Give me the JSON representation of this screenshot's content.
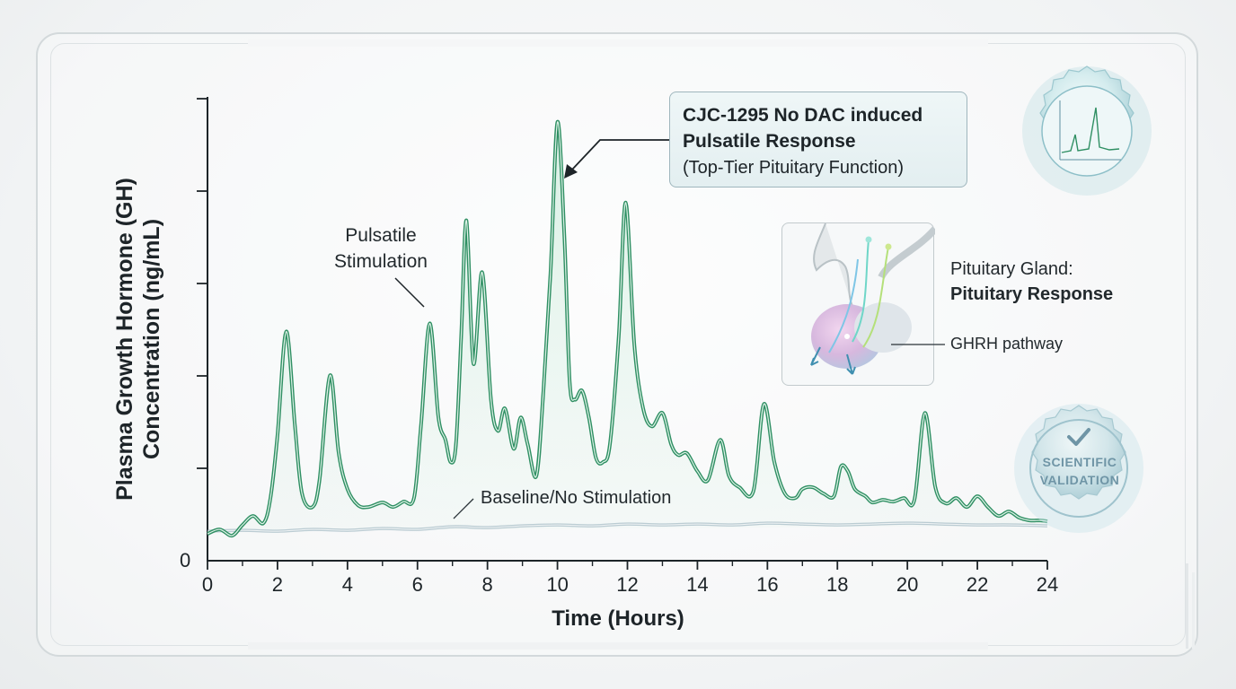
{
  "chart_data": {
    "type": "line",
    "title": "",
    "xlabel": "Time (Hours)",
    "ylabel": [
      "Plasma Growth Hormone (GH)",
      "Concentration (ng/mL)"
    ],
    "xlim": [
      0,
      24
    ],
    "x_ticks": [
      "0",
      "2",
      "4",
      "6",
      "8",
      "10",
      "12",
      "14",
      "16",
      "18",
      "20",
      "22",
      "24"
    ],
    "y_tick_labels": [
      "0"
    ],
    "series": [
      {
        "name": "CJC-1295 No DAC induced Pulsatile Response",
        "color": "#2f8f63",
        "x": [
          0,
          0.35,
          0.7,
          1.0,
          1.3,
          1.6,
          1.8,
          2.0,
          2.25,
          2.5,
          2.7,
          3.0,
          3.2,
          3.5,
          3.75,
          4.0,
          4.3,
          4.6,
          5.0,
          5.3,
          5.6,
          5.9,
          6.1,
          6.35,
          6.6,
          6.8,
          6.95,
          7.1,
          7.25,
          7.4,
          7.6,
          7.85,
          8.1,
          8.3,
          8.5,
          8.75,
          8.95,
          9.15,
          9.4,
          9.6,
          9.8,
          10.0,
          10.2,
          10.35,
          10.5,
          10.7,
          10.9,
          11.1,
          11.3,
          11.5,
          11.75,
          11.95,
          12.2,
          12.45,
          12.7,
          13.0,
          13.25,
          13.45,
          13.7,
          14.0,
          14.3,
          14.65,
          14.9,
          15.2,
          15.6,
          15.9,
          16.2,
          16.5,
          16.8,
          17.0,
          17.3,
          17.6,
          17.9,
          18.1,
          18.3,
          18.5,
          18.8,
          19.0,
          19.3,
          19.6,
          19.9,
          20.2,
          20.5,
          20.8,
          21.1,
          21.4,
          21.7,
          22.0,
          22.3,
          22.6,
          22.9,
          23.2,
          23.5,
          23.8,
          24.0
        ],
        "y": [
          0.3,
          0.35,
          0.28,
          0.4,
          0.5,
          0.42,
          0.7,
          1.4,
          2.56,
          1.5,
          0.75,
          0.6,
          0.9,
          2.07,
          1.2,
          0.8,
          0.62,
          0.6,
          0.65,
          0.6,
          0.66,
          0.7,
          1.5,
          2.65,
          1.6,
          1.35,
          1.1,
          1.3,
          2.5,
          3.8,
          2.2,
          3.22,
          1.8,
          1.45,
          1.7,
          1.25,
          1.6,
          1.3,
          0.95,
          1.9,
          3.2,
          4.9,
          3.6,
          2.0,
          1.8,
          1.9,
          1.6,
          1.15,
          1.1,
          1.3,
          2.5,
          4.0,
          2.4,
          1.7,
          1.5,
          1.65,
          1.3,
          1.18,
          1.2,
          1.0,
          0.9,
          1.35,
          0.95,
          0.82,
          0.78,
          1.75,
          1.1,
          0.75,
          0.7,
          0.8,
          0.82,
          0.75,
          0.72,
          1.05,
          1.0,
          0.8,
          0.72,
          0.65,
          0.68,
          0.66,
          0.7,
          0.68,
          1.65,
          0.82,
          0.64,
          0.7,
          0.6,
          0.72,
          0.6,
          0.5,
          0.55,
          0.48,
          0.45,
          0.45,
          0.44
        ]
      },
      {
        "name": "Baseline/No Stimulation",
        "color": "#8aa8b5",
        "x": [
          0,
          1,
          2,
          3,
          4,
          5,
          6,
          7,
          8,
          9,
          10,
          11,
          12,
          13,
          14,
          15,
          16,
          17,
          18,
          19,
          20,
          21,
          22,
          23,
          24
        ],
        "y": [
          0.33,
          0.34,
          0.33,
          0.35,
          0.34,
          0.36,
          0.35,
          0.38,
          0.37,
          0.39,
          0.4,
          0.39,
          0.41,
          0.4,
          0.41,
          0.4,
          0.42,
          0.41,
          0.4,
          0.41,
          0.42,
          0.41,
          0.4,
          0.4,
          0.39
        ]
      }
    ],
    "callout": {
      "title_line1": "CJC-1295 No DAC induced",
      "title_line2": "Pulsatile Response",
      "subtitle": "(Top-Tier Pituitary Function)",
      "target": {
        "x": 10,
        "y": 4.9
      }
    },
    "annotations": {
      "pulsatile_line1": "Pulsatile",
      "pulsatile_line2": "Stimulation",
      "baseline": "Baseline/No Stimulation"
    },
    "legend": "none"
  },
  "pituitary": {
    "title_line1": "Pituitary Gland:",
    "title_line2": "Pituitary Response",
    "pathway_label": "GHRH pathway"
  },
  "badge": {
    "line1": "SCIENTIFIC",
    "line2": "VALIDATION"
  },
  "colors": {
    "accent_green": "#2f8f63",
    "baseline_blue": "#8aa8b5",
    "badge_teal": "#7fb3c2"
  }
}
